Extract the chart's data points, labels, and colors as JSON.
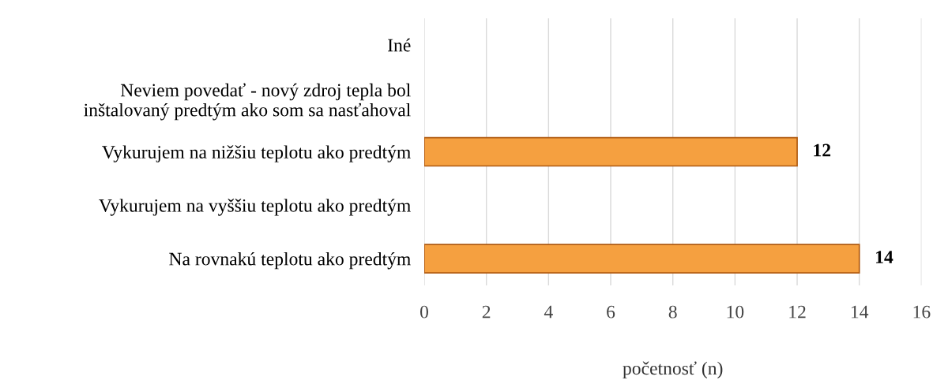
{
  "chart_data": {
    "type": "bar",
    "orientation": "horizontal",
    "xlabel": "početnosť (n)",
    "categories": [
      "Iné",
      "Neviem povedať - nový zdroj tepla bol\ninštalovaný predtým ako som sa nasťahoval",
      "Vykurujem na nižšiu teplotu ako predtým",
      "Vykurujem na vyššiu teplotu ako predtým",
      "Na rovnakú teplotu ako predtým"
    ],
    "values": [
      0,
      0,
      12,
      0,
      14
    ],
    "value_labels": [
      null,
      null,
      "12",
      null,
      "14"
    ],
    "color": "#f5a040",
    "xlim": [
      0,
      16
    ],
    "xticks": [
      0,
      2,
      4,
      6,
      8,
      10,
      12,
      14,
      16
    ],
    "grid": "x"
  }
}
